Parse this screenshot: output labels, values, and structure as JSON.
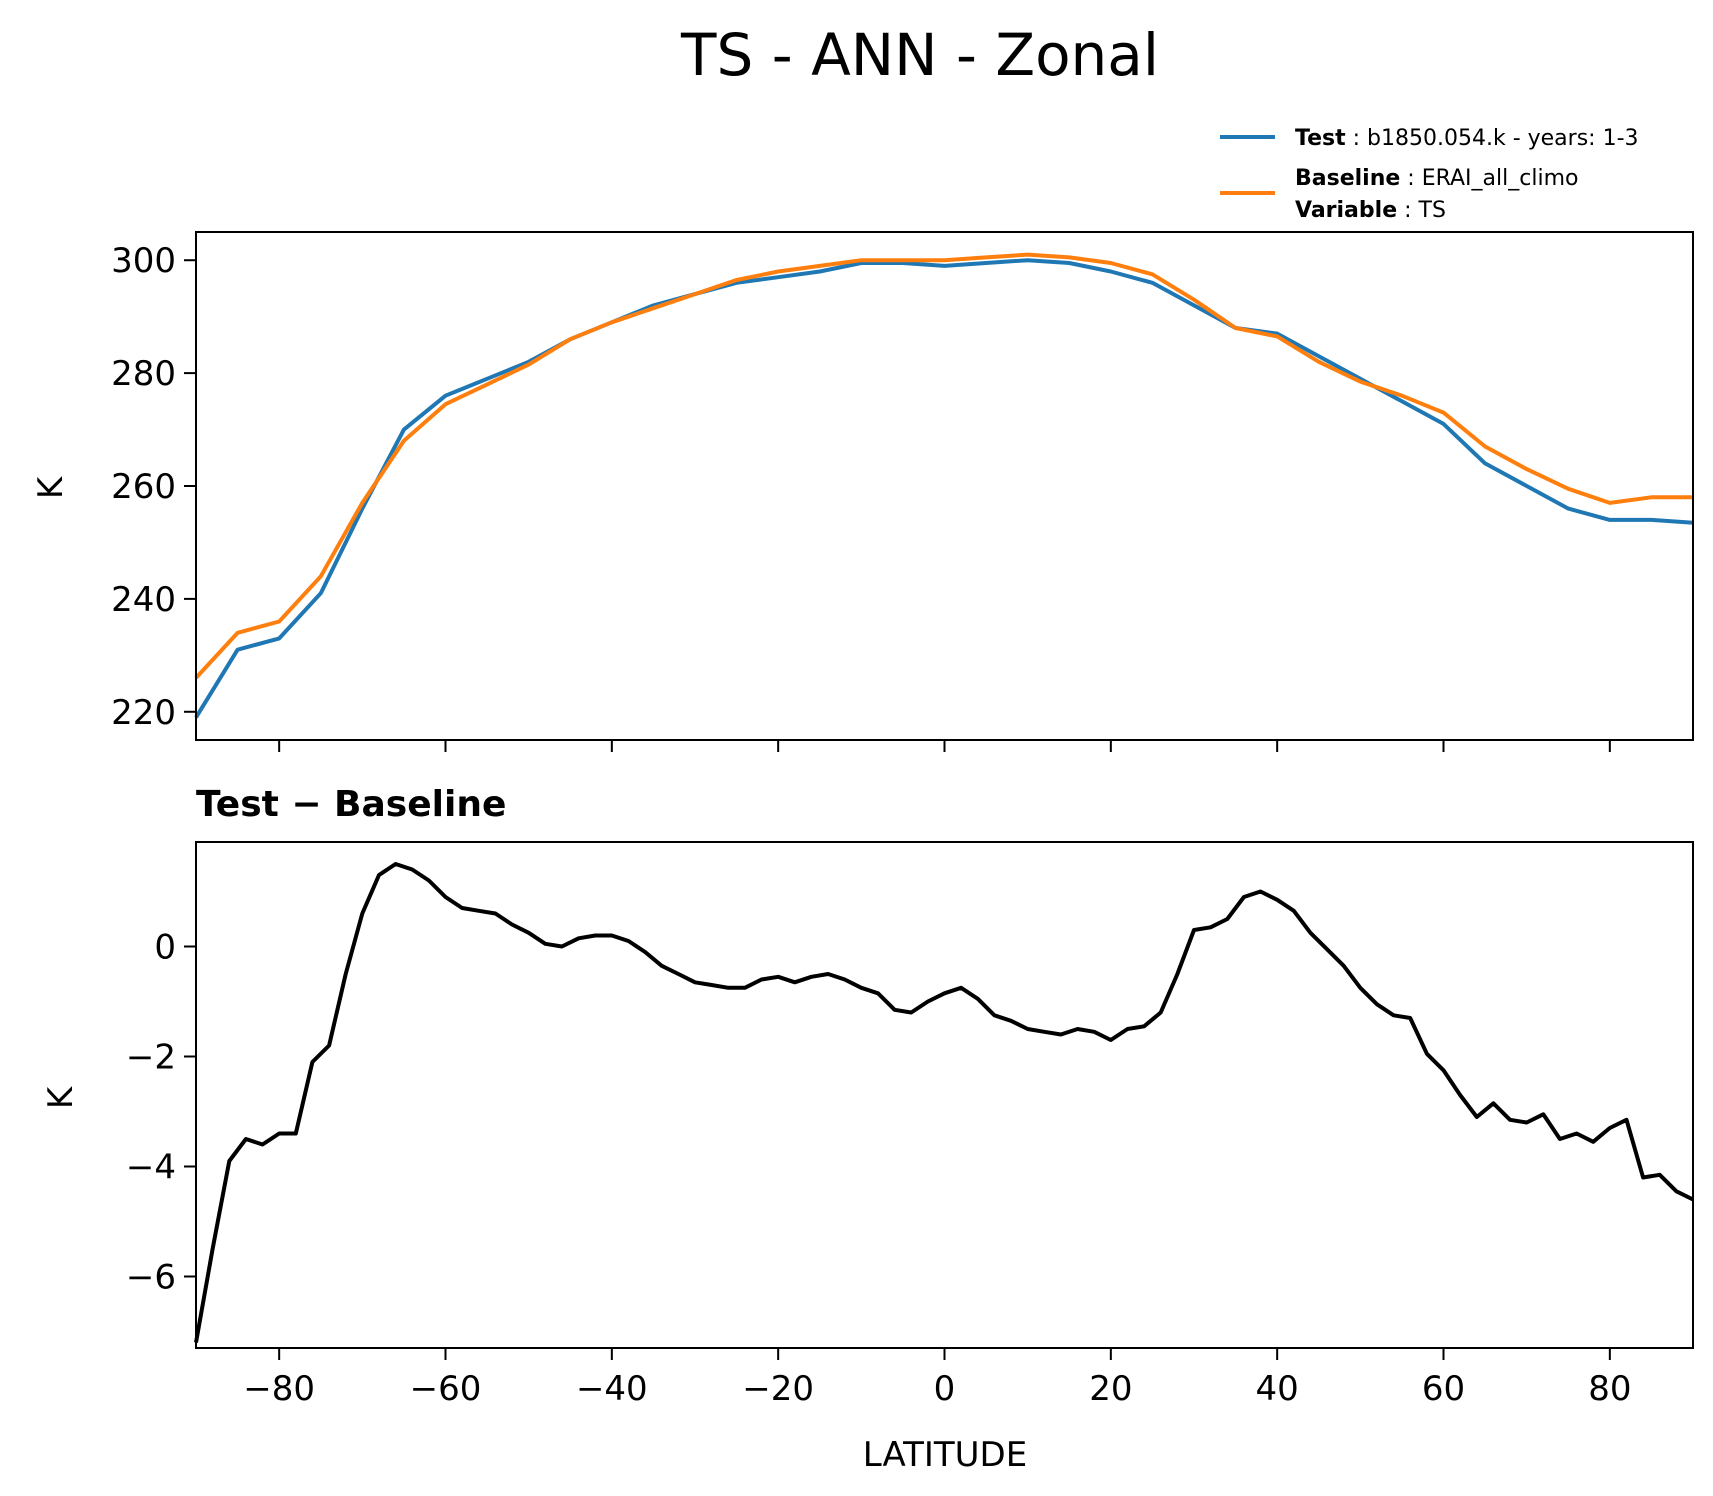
{
  "figure": {
    "title": "TS - ANN - Zonal"
  },
  "legend": {
    "test_key": "Test",
    "test_value": "b1850.054.k - years: 1-3",
    "baseline_key": "Baseline",
    "baseline_value": "ERAI_all_climo",
    "variable_key": "Variable",
    "variable_value": "TS",
    "test_color": "#1f77b4",
    "baseline_color": "#ff7f0e"
  },
  "chart_data": [
    {
      "type": "line",
      "ylabel": "K",
      "xlabel": "",
      "xlim": [
        -90,
        90
      ],
      "ylim": [
        215,
        305
      ],
      "xticks": [
        -80,
        -60,
        -40,
        -20,
        0,
        20,
        40,
        60,
        80
      ],
      "yticks": [
        220,
        240,
        260,
        280,
        300
      ],
      "grid": false,
      "legend_position": "top-right",
      "x": [
        -90,
        -85,
        -80,
        -75,
        -70,
        -65,
        -60,
        -55,
        -50,
        -45,
        -40,
        -35,
        -30,
        -25,
        -20,
        -15,
        -10,
        -5,
        0,
        5,
        10,
        15,
        20,
        25,
        30,
        35,
        40,
        45,
        50,
        55,
        60,
        65,
        70,
        75,
        80,
        85,
        90
      ],
      "series": [
        {
          "name": "Test",
          "color": "#1f77b4",
          "values": [
            219,
            231,
            233,
            241,
            256,
            270,
            276,
            279,
            282,
            286,
            289,
            292,
            294,
            296,
            297,
            298,
            299.5,
            299.5,
            299,
            299.5,
            300,
            299.5,
            298,
            296,
            292,
            288,
            287,
            283,
            279,
            275,
            271,
            264,
            260,
            256,
            254,
            254,
            253.5
          ]
        },
        {
          "name": "Baseline",
          "color": "#ff7f0e",
          "values": [
            226,
            234,
            236,
            244,
            257,
            268,
            274.5,
            278,
            281.5,
            286,
            289,
            291.5,
            294,
            296.5,
            298,
            299,
            300,
            300,
            300,
            300.5,
            301,
            300.5,
            299.5,
            297.5,
            293,
            288,
            286.5,
            282,
            278.5,
            276,
            273,
            267,
            263,
            259.5,
            257,
            258,
            258
          ]
        }
      ]
    },
    {
      "type": "line",
      "title": "Test − Baseline",
      "ylabel": "K",
      "xlabel": "LATITUDE",
      "xlim": [
        -90,
        90
      ],
      "ylim": [
        -7.3,
        1.9
      ],
      "xticks": [
        -80,
        -60,
        -40,
        -20,
        0,
        20,
        40,
        60,
        80
      ],
      "xtick_labels": [
        "−80",
        "−60",
        "−40",
        "−20",
        "0",
        "20",
        "40",
        "60",
        "80"
      ],
      "yticks": [
        -6,
        -4,
        -2,
        0
      ],
      "ytick_labels": [
        "−6",
        "−4",
        "−2",
        "0"
      ],
      "grid": false,
      "x": [
        -90,
        -88,
        -86,
        -84,
        -82,
        -80,
        -78,
        -76,
        -74,
        -72,
        -70,
        -68,
        -66,
        -64,
        -62,
        -60,
        -58,
        -56,
        -54,
        -52,
        -50,
        -48,
        -46,
        -44,
        -42,
        -40,
        -38,
        -36,
        -34,
        -32,
        -30,
        -28,
        -26,
        -24,
        -22,
        -20,
        -18,
        -16,
        -14,
        -12,
        -10,
        -8,
        -6,
        -4,
        -2,
        0,
        2,
        4,
        6,
        8,
        10,
        12,
        14,
        16,
        18,
        20,
        22,
        24,
        26,
        28,
        30,
        32,
        34,
        36,
        38,
        40,
        42,
        44,
        46,
        48,
        50,
        52,
        54,
        56,
        58,
        60,
        62,
        64,
        66,
        68,
        70,
        72,
        74,
        76,
        78,
        80,
        82,
        84,
        86,
        88,
        90
      ],
      "series": [
        {
          "name": "Test − Baseline",
          "color": "#000000",
          "values": [
            -7.2,
            -5.5,
            -3.9,
            -3.5,
            -3.6,
            -3.4,
            -3.4,
            -2.1,
            -1.8,
            -0.5,
            0.6,
            1.3,
            1.5,
            1.4,
            1.2,
            0.9,
            0.7,
            0.65,
            0.6,
            0.4,
            0.25,
            0.05,
            0.0,
            0.15,
            0.2,
            0.2,
            0.1,
            -0.1,
            -0.35,
            -0.5,
            -0.65,
            -0.7,
            -0.75,
            -0.75,
            -0.6,
            -0.55,
            -0.65,
            -0.55,
            -0.5,
            -0.6,
            -0.75,
            -0.85,
            -1.15,
            -1.2,
            -1.0,
            -0.85,
            -0.75,
            -0.95,
            -1.25,
            -1.35,
            -1.5,
            -1.55,
            -1.6,
            -1.5,
            -1.55,
            -1.7,
            -1.5,
            -1.45,
            -1.2,
            -0.5,
            0.3,
            0.35,
            0.5,
            0.9,
            1.0,
            0.85,
            0.65,
            0.25,
            -0.05,
            -0.35,
            -0.75,
            -1.05,
            -1.25,
            -1.3,
            -1.95,
            -2.25,
            -2.7,
            -3.1,
            -2.85,
            -3.15,
            -3.2,
            -3.05,
            -3.5,
            -3.4,
            -3.55,
            -3.3,
            -3.15,
            -4.2,
            -4.15,
            -4.45,
            -4.6
          ]
        }
      ]
    }
  ]
}
